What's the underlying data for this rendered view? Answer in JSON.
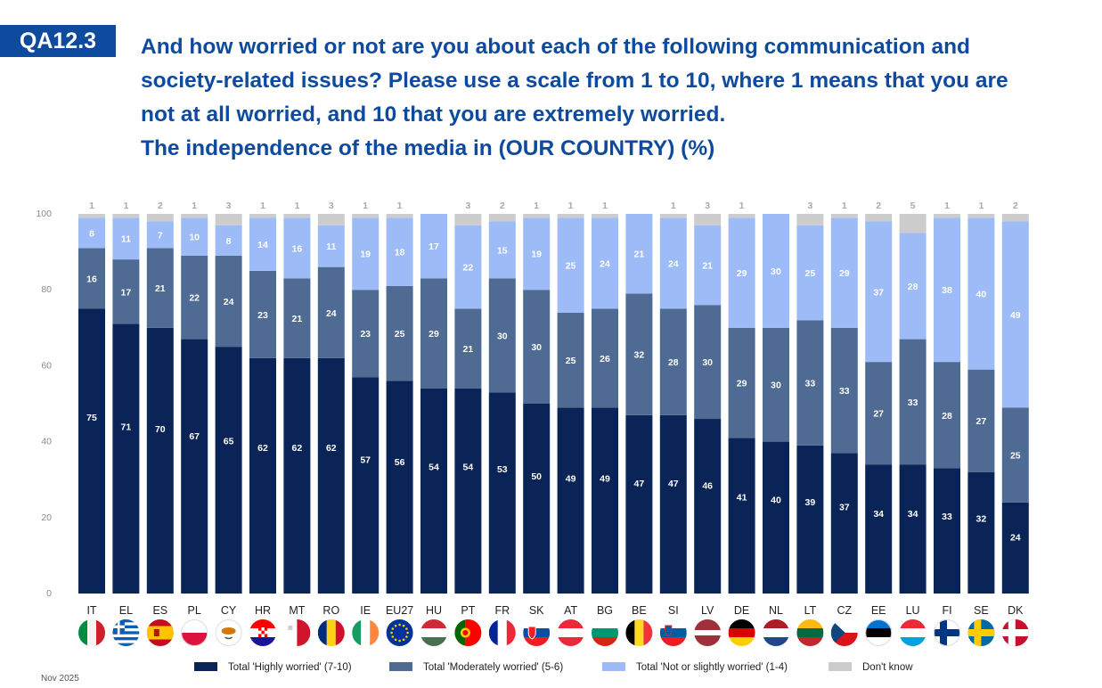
{
  "header": {
    "tag": "QA12.3",
    "question_lines": [
      "And how worried or not are you about each of the following communication and",
      "society-related issues? Please use a scale from 1 to 10, where 1 means that you are",
      "not at all worried, and 10 that you are extremely worried.",
      "The independence of the media in (OUR COUNTRY) (%)"
    ]
  },
  "footer": {
    "date": "Nov 2025"
  },
  "chart_data": {
    "type": "bar",
    "stacked": true,
    "ylim": [
      0,
      100
    ],
    "y_ticks": [
      0,
      20,
      40,
      60,
      80,
      100
    ],
    "grid": false,
    "legend_position": "bottom",
    "categories": [
      "IT",
      "EL",
      "ES",
      "PL",
      "CY",
      "HR",
      "MT",
      "RO",
      "IE",
      "EU27",
      "HU",
      "PT",
      "FR",
      "SK",
      "AT",
      "BG",
      "BE",
      "SI",
      "LV",
      "DE",
      "NL",
      "LT",
      "CZ",
      "EE",
      "LU",
      "FI",
      "SE",
      "DK"
    ],
    "series": [
      {
        "name": "Total 'Highly worried' (7-10)",
        "color": "#0b2457",
        "values": [
          75,
          71,
          70,
          67,
          65,
          62,
          62,
          62,
          57,
          56,
          54,
          54,
          53,
          50,
          49,
          49,
          47,
          47,
          46,
          41,
          40,
          39,
          37,
          34,
          34,
          33,
          32,
          24
        ]
      },
      {
        "name": "Total 'Moderately worried' (5-6)",
        "color": "#4f6b93",
        "values": [
          16,
          17,
          21,
          22,
          24,
          23,
          21,
          24,
          23,
          25,
          29,
          21,
          30,
          30,
          25,
          26,
          32,
          28,
          30,
          29,
          30,
          33,
          33,
          27,
          33,
          28,
          27,
          25
        ]
      },
      {
        "name": "Total 'Not or slightly worried' (1-4)",
        "color": "#9dbcf7",
        "values": [
          8,
          11,
          7,
          10,
          8,
          14,
          16,
          11,
          19,
          18,
          17,
          22,
          15,
          19,
          25,
          24,
          21,
          24,
          21,
          29,
          30,
          25,
          29,
          37,
          28,
          38,
          40,
          49
        ]
      },
      {
        "name": "Don't know",
        "color": "#cccccc",
        "values": [
          1,
          1,
          2,
          1,
          3,
          1,
          1,
          3,
          1,
          1,
          null,
          3,
          2,
          1,
          1,
          1,
          null,
          1,
          3,
          1,
          null,
          3,
          1,
          2,
          5,
          1,
          1,
          2
        ]
      }
    ],
    "flag_icons": [
      "italy-flag-icon",
      "greece-flag-icon",
      "spain-flag-icon",
      "poland-flag-icon",
      "cyprus-flag-icon",
      "croatia-flag-icon",
      "malta-flag-icon",
      "romania-flag-icon",
      "ireland-flag-icon",
      "eu-flag-icon",
      "hungary-flag-icon",
      "portugal-flag-icon",
      "france-flag-icon",
      "slovakia-flag-icon",
      "austria-flag-icon",
      "bulgaria-flag-icon",
      "belgium-flag-icon",
      "slovenia-flag-icon",
      "latvia-flag-icon",
      "germany-flag-icon",
      "netherlands-flag-icon",
      "lithuania-flag-icon",
      "czechia-flag-icon",
      "estonia-flag-icon",
      "luxembourg-flag-icon",
      "finland-flag-icon",
      "sweden-flag-icon",
      "denmark-flag-icon"
    ]
  }
}
